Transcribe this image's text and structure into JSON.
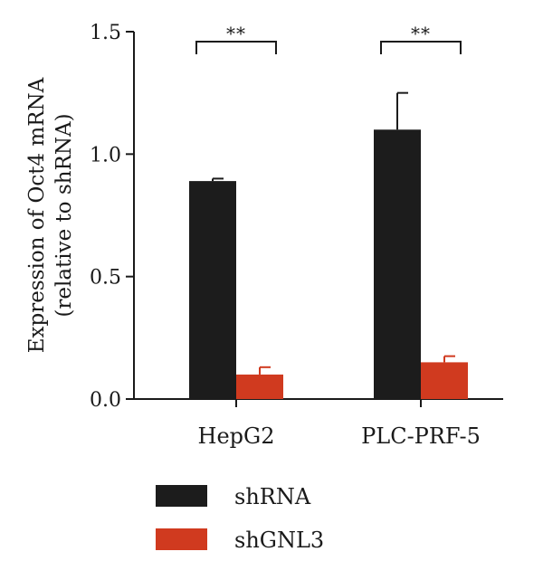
{
  "chart_data": {
    "type": "bar",
    "ylabel_line1": "Expression of Oct4 mRNA",
    "ylabel_line2": "(relative to shRNA)",
    "ylim": [
      0,
      1.5
    ],
    "yticks": [
      "0.0",
      "0.5",
      "1.0",
      "1.5"
    ],
    "categories": [
      "HepG2",
      "PLC-PRF-5"
    ],
    "series": [
      {
        "name": "shRNA",
        "color": "#1c1c1c",
        "values": [
          0.89,
          1.1
        ],
        "errors": [
          0.01,
          0.15
        ]
      },
      {
        "name": "shGNL3",
        "color": "#d03a1f",
        "values": [
          0.1,
          0.15
        ],
        "errors": [
          0.03,
          0.025
        ]
      }
    ],
    "significance": [
      {
        "category": "HepG2",
        "label": "**"
      },
      {
        "category": "PLC-PRF-5",
        "label": "**"
      }
    ],
    "legend_position": "bottom-left",
    "grid": false
  }
}
